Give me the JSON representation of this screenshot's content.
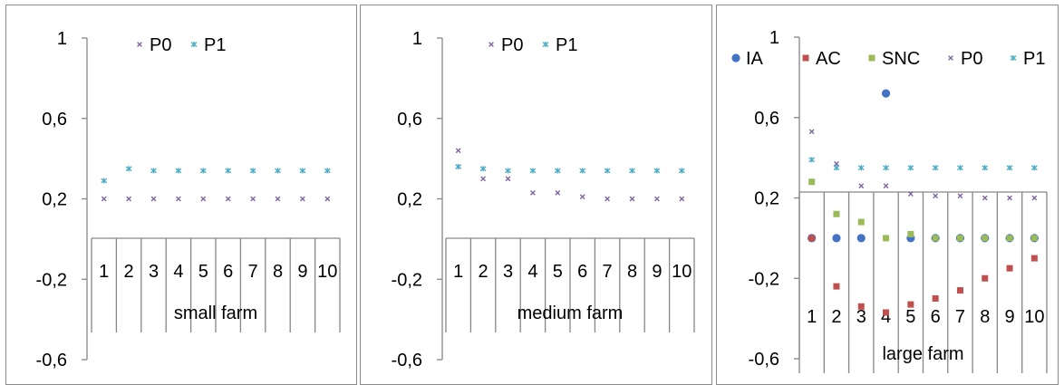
{
  "colors": {
    "IA": "#4472c4",
    "AC": "#c0504d",
    "SNC": "#9bbb59",
    "P0": "#8064a2",
    "P1": "#4bacc6",
    "axis": "#868686",
    "frame": "#8c8c8c"
  },
  "chart_data": [
    {
      "type": "scatter",
      "title": "",
      "xlabel": "small farm",
      "ylabel": "",
      "categories": [
        "1",
        "2",
        "3",
        "4",
        "5",
        "6",
        "7",
        "8",
        "9",
        "10"
      ],
      "ylim": [
        -0.6,
        1
      ],
      "yticks": [
        "1",
        "0,6",
        "0,2",
        "-0,2",
        "-0,6"
      ],
      "legend": [
        "P0",
        "P1"
      ],
      "legend_position": "top",
      "grid": false,
      "series": [
        {
          "name": "P0",
          "marker": "x",
          "values": [
            0.2,
            0.2,
            0.2,
            0.2,
            0.2,
            0.2,
            0.2,
            0.2,
            0.2,
            0.2
          ]
        },
        {
          "name": "P1",
          "marker": "star",
          "values": [
            0.29,
            0.35,
            0.34,
            0.34,
            0.34,
            0.34,
            0.34,
            0.34,
            0.34,
            0.34
          ]
        }
      ]
    },
    {
      "type": "scatter",
      "title": "",
      "xlabel": "medium farm",
      "ylabel": "",
      "categories": [
        "1",
        "2",
        "3",
        "4",
        "5",
        "6",
        "7",
        "8",
        "9",
        "10"
      ],
      "ylim": [
        -0.6,
        1
      ],
      "yticks": [
        "1",
        "0,6",
        "0,2",
        "-0,2",
        "-0,6"
      ],
      "legend": [
        "P0",
        "P1"
      ],
      "legend_position": "top",
      "grid": false,
      "series": [
        {
          "name": "P0",
          "marker": "x",
          "values": [
            0.44,
            0.3,
            0.3,
            0.23,
            0.23,
            0.21,
            0.2,
            0.2,
            0.2,
            0.2
          ]
        },
        {
          "name": "P1",
          "marker": "star",
          "values": [
            0.36,
            0.35,
            0.34,
            0.34,
            0.34,
            0.34,
            0.34,
            0.34,
            0.34,
            0.34
          ]
        }
      ]
    },
    {
      "type": "scatter",
      "title": "",
      "xlabel": "large farm",
      "ylabel": "",
      "categories": [
        "1",
        "2",
        "3",
        "4",
        "5",
        "6",
        "7",
        "8",
        "9",
        "10"
      ],
      "ylim": [
        -0.6,
        1
      ],
      "yticks": [
        "1",
        "0,6",
        "0,2",
        "-0,2",
        "-0,6"
      ],
      "legend": [
        "IA",
        "AC",
        "SNC",
        "P0",
        "P1"
      ],
      "legend_position": "top",
      "grid": false,
      "series": [
        {
          "name": "IA",
          "marker": "circle",
          "values": [
            0,
            0,
            0,
            0.72,
            0,
            0,
            0,
            0,
            0,
            0
          ]
        },
        {
          "name": "AC",
          "marker": "square",
          "values": [
            0,
            -0.24,
            -0.34,
            -0.37,
            -0.33,
            -0.3,
            -0.26,
            -0.2,
            -0.15,
            -0.1
          ]
        },
        {
          "name": "SNC",
          "marker": "square",
          "values": [
            0.28,
            0.12,
            0.08,
            0,
            0.02,
            0,
            0,
            0,
            0,
            0
          ]
        },
        {
          "name": "P0",
          "marker": "x",
          "values": [
            0.53,
            0.37,
            0.26,
            0.26,
            0.22,
            0.21,
            0.21,
            0.2,
            0.2,
            0.2
          ]
        },
        {
          "name": "P1",
          "marker": "star",
          "values": [
            0.39,
            0.35,
            0.35,
            0.35,
            0.35,
            0.35,
            0.35,
            0.35,
            0.35,
            0.35
          ]
        }
      ]
    }
  ]
}
